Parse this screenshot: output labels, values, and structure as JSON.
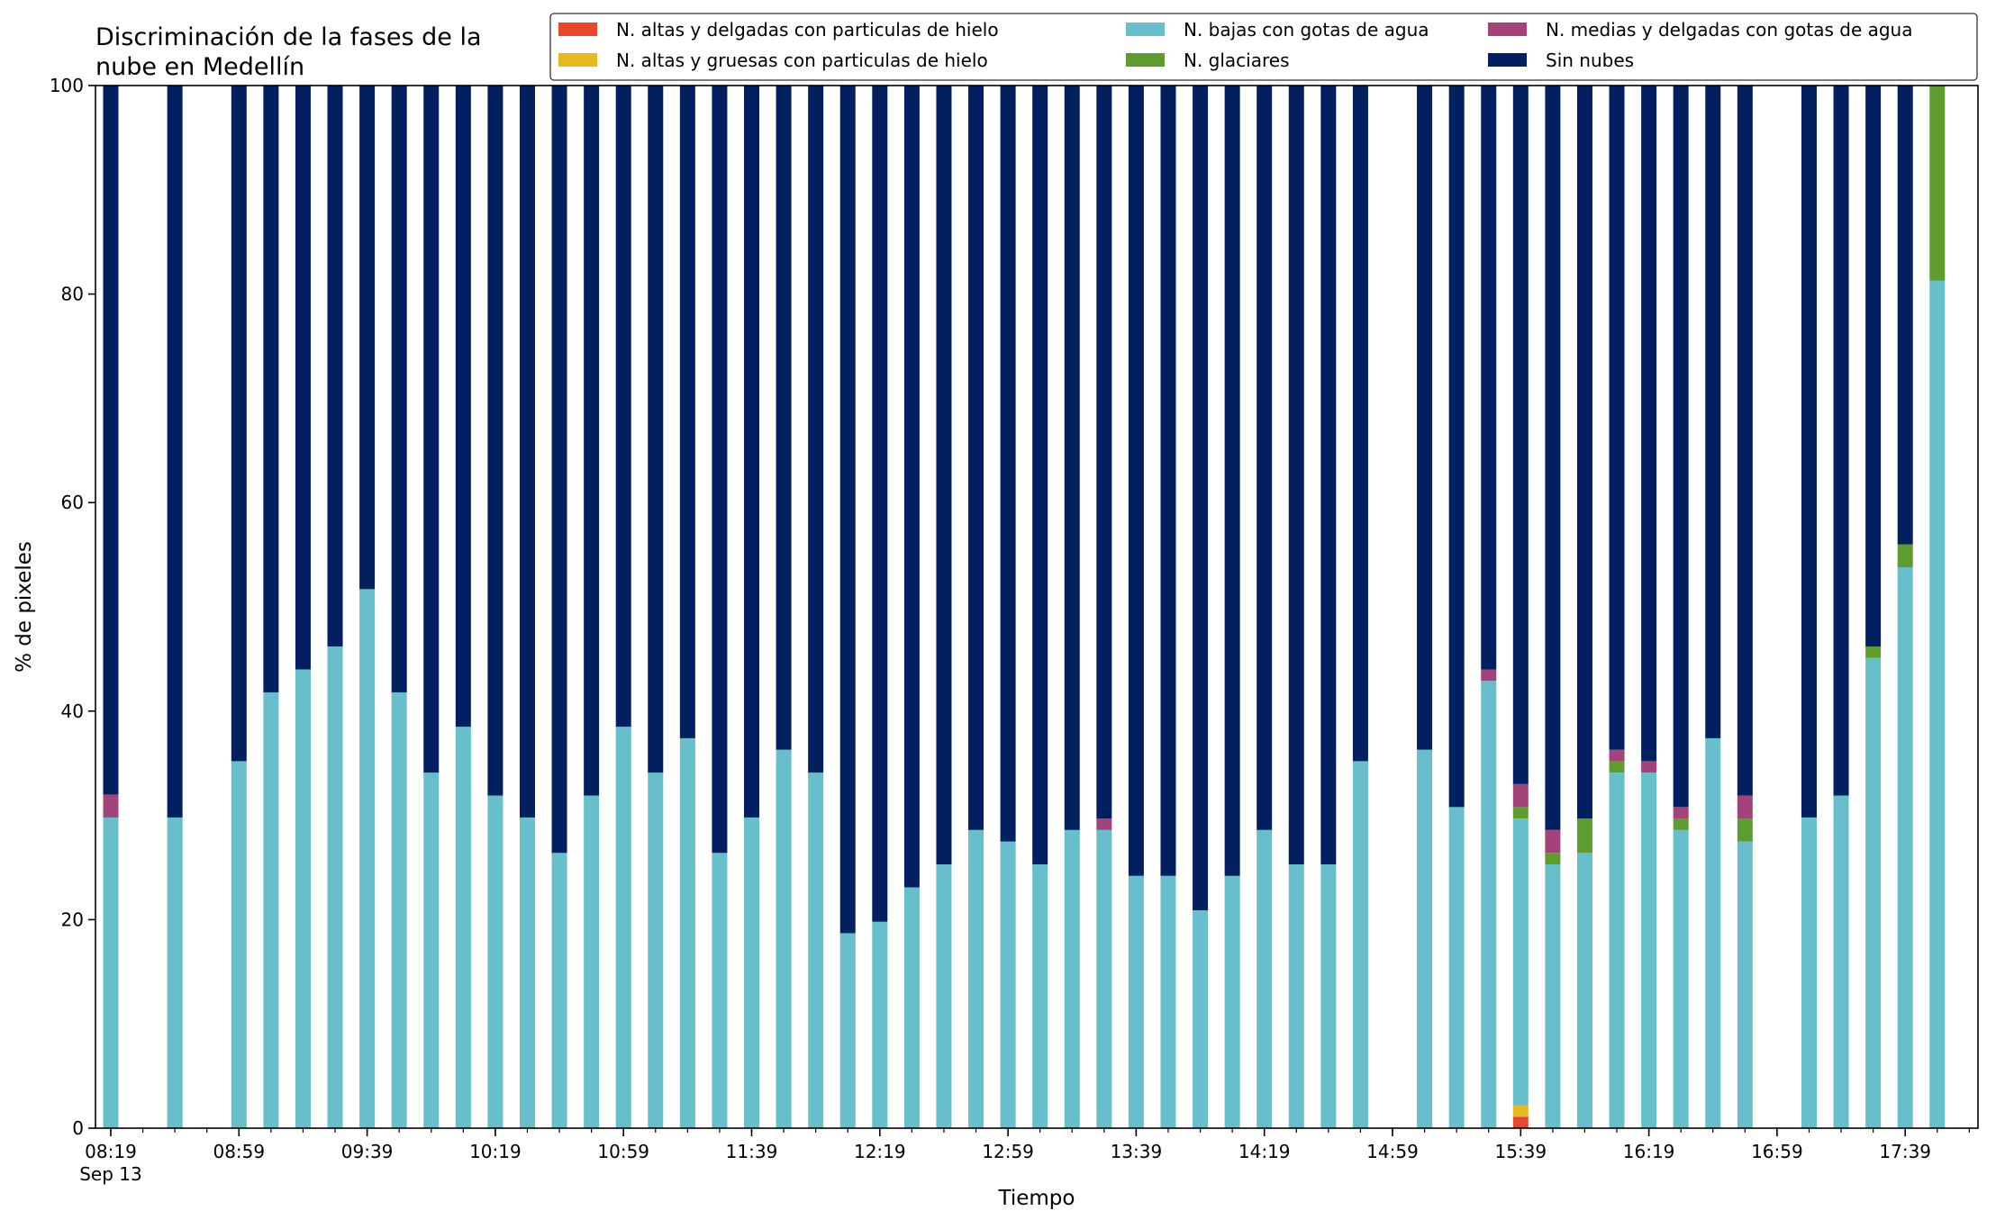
{
  "chart_data": {
    "type": "bar",
    "stacked": true,
    "title": "Discriminación de la fases de la\nnube en Medellín",
    "xlabel": "Tiempo",
    "ylabel": "% de pixeles",
    "ylim": [
      0,
      100
    ],
    "yticks": [
      0,
      20,
      40,
      60,
      80,
      100
    ],
    "grid": false,
    "legend_position": "top-right",
    "legend_columns": 3,
    "x_start_time": "08:19",
    "x_step_minutes": 10,
    "x_end_time": "17:59",
    "x_ticks": [
      {
        "time": "08:19",
        "label": "08:19",
        "sublabel": "Sep 13"
      },
      {
        "time": "08:59",
        "label": "08:59",
        "sublabel": ""
      },
      {
        "time": "09:39",
        "label": "09:39",
        "sublabel": ""
      },
      {
        "time": "10:19",
        "label": "10:19",
        "sublabel": ""
      },
      {
        "time": "10:59",
        "label": "10:59",
        "sublabel": ""
      },
      {
        "time": "11:39",
        "label": "11:39",
        "sublabel": ""
      },
      {
        "time": "12:19",
        "label": "12:19",
        "sublabel": ""
      },
      {
        "time": "12:59",
        "label": "12:59",
        "sublabel": ""
      },
      {
        "time": "13:39",
        "label": "13:39",
        "sublabel": ""
      },
      {
        "time": "14:19",
        "label": "14:19",
        "sublabel": ""
      },
      {
        "time": "14:59",
        "label": "14:59",
        "sublabel": ""
      },
      {
        "time": "15:39",
        "label": "15:39",
        "sublabel": ""
      },
      {
        "time": "16:19",
        "label": "16:19",
        "sublabel": ""
      },
      {
        "time": "16:59",
        "label": "16:59",
        "sublabel": ""
      },
      {
        "time": "17:39",
        "label": "17:39",
        "sublabel": ""
      }
    ],
    "categories": [
      "08:19",
      "08:39",
      "08:59",
      "09:09",
      "09:19",
      "09:29",
      "09:39",
      "09:49",
      "09:59",
      "10:09",
      "10:19",
      "10:29",
      "10:39",
      "10:49",
      "10:59",
      "11:09",
      "11:19",
      "11:29",
      "11:39",
      "11:49",
      "11:59",
      "12:09",
      "12:19",
      "12:29",
      "12:39",
      "12:49",
      "12:59",
      "13:09",
      "13:19",
      "13:29",
      "13:39",
      "13:49",
      "13:59",
      "14:09",
      "14:19",
      "14:29",
      "14:39",
      "14:49",
      "15:09",
      "15:19",
      "15:29",
      "15:39",
      "15:49",
      "15:59",
      "16:09",
      "16:19",
      "16:29",
      "16:39",
      "16:49",
      "17:09",
      "17:19",
      "17:29",
      "17:39",
      "17:49"
    ],
    "series": [
      {
        "name": "N. altas y delgadas con particulas de hielo",
        "color": "#e8472b",
        "values": [
          0,
          0,
          0,
          0,
          0,
          0,
          0,
          0,
          0,
          0,
          0,
          0,
          0,
          0,
          0,
          0,
          0,
          0,
          0,
          0,
          0,
          0,
          0,
          0,
          0,
          0,
          0,
          0,
          0,
          0,
          0,
          0,
          0,
          0,
          0,
          0,
          0,
          0,
          0,
          0,
          0,
          1.1,
          0,
          0,
          0,
          0,
          0,
          0,
          0,
          0,
          0,
          0,
          0,
          0
        ]
      },
      {
        "name": "N. altas y gruesas con particulas de hielo",
        "color": "#e6b91e",
        "values": [
          0,
          0,
          0,
          0,
          0,
          0,
          0,
          0,
          0,
          0,
          0,
          0,
          0,
          0,
          0,
          0,
          0,
          0,
          0,
          0,
          0,
          0,
          0,
          0,
          0,
          0,
          0,
          0,
          0,
          0,
          0,
          0,
          0,
          0,
          0,
          0,
          0,
          0,
          0,
          0,
          0,
          1.1,
          0,
          0,
          0,
          0,
          0,
          0,
          0,
          0,
          0,
          0,
          0,
          0
        ]
      },
      {
        "name": "N. bajas con gotas de agua",
        "color": "#67bfcb",
        "values": [
          29.8,
          29.8,
          35.2,
          41.8,
          44.0,
          46.2,
          51.7,
          41.8,
          34.1,
          38.5,
          31.9,
          29.8,
          26.4,
          31.9,
          38.5,
          34.1,
          37.4,
          26.4,
          29.8,
          36.3,
          34.1,
          18.7,
          19.8,
          23.1,
          25.3,
          28.6,
          27.5,
          25.3,
          28.6,
          28.6,
          24.2,
          24.2,
          20.9,
          24.2,
          28.6,
          25.3,
          25.3,
          35.2,
          36.3,
          30.8,
          42.9,
          27.5,
          25.3,
          26.4,
          34.1,
          34.1,
          28.6,
          37.4,
          27.5,
          29.8,
          31.9,
          45.1,
          53.8,
          81.3
        ]
      },
      {
        "name": "N. glaciares",
        "color": "#5e9c2e",
        "values": [
          0,
          0,
          0,
          0,
          0,
          0,
          0,
          0,
          0,
          0,
          0,
          0,
          0,
          0,
          0,
          0,
          0,
          0,
          0,
          0,
          0,
          0,
          0,
          0,
          0,
          0,
          0,
          0,
          0,
          0,
          0,
          0,
          0,
          0,
          0,
          0,
          0,
          0,
          0,
          0,
          0,
          1.1,
          1.1,
          3.3,
          1.1,
          0,
          1.1,
          0,
          2.2,
          0,
          0,
          1.1,
          2.2,
          18.7
        ]
      },
      {
        "name": "N. medias y delgadas con gotas de agua",
        "color": "#a4437a",
        "values": [
          2.2,
          0,
          0,
          0,
          0,
          0,
          0,
          0,
          0,
          0,
          0,
          0,
          0,
          0,
          0,
          0,
          0,
          0,
          0,
          0,
          0,
          0,
          0,
          0,
          0,
          0,
          0,
          0,
          0,
          1.1,
          0,
          0,
          0,
          0,
          0,
          0,
          0,
          0,
          0,
          0,
          1.1,
          2.2,
          2.2,
          0,
          1.1,
          1.1,
          1.1,
          0,
          2.2,
          0,
          0,
          0,
          0,
          0
        ]
      },
      {
        "name": "Sin nubes",
        "color": "#021f60",
        "values": [
          68.0,
          70.2,
          64.8,
          58.2,
          56.0,
          53.8,
          48.3,
          58.2,
          65.9,
          61.5,
          68.1,
          70.2,
          73.6,
          68.1,
          61.5,
          65.9,
          62.6,
          73.6,
          70.2,
          63.7,
          65.9,
          81.3,
          80.2,
          76.9,
          74.7,
          71.4,
          72.5,
          74.7,
          71.4,
          70.3,
          75.8,
          75.8,
          79.1,
          75.8,
          71.4,
          74.7,
          74.7,
          64.8,
          63.7,
          69.2,
          56.0,
          67.0,
          71.4,
          70.3,
          63.7,
          64.8,
          69.2,
          62.6,
          68.1,
          70.2,
          68.1,
          53.8,
          44.0,
          0
        ]
      }
    ]
  }
}
